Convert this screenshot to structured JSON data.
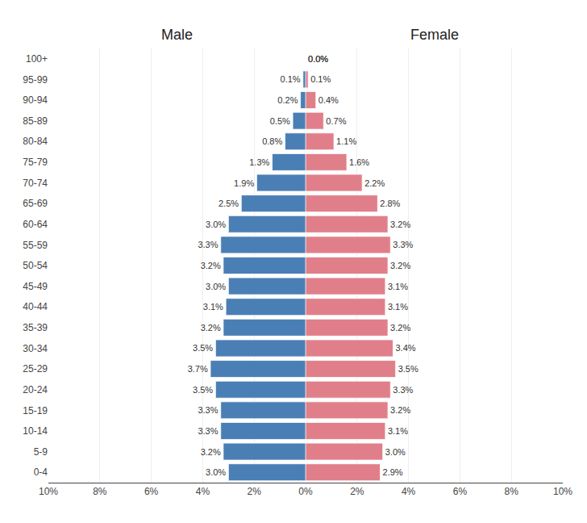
{
  "chart_data": {
    "type": "bar",
    "orientation": "horizontal",
    "categories": [
      "0-4",
      "5-9",
      "10-14",
      "15-19",
      "20-24",
      "25-29",
      "30-34",
      "35-39",
      "40-44",
      "45-49",
      "50-54",
      "55-59",
      "60-64",
      "65-69",
      "70-74",
      "75-79",
      "80-84",
      "85-89",
      "90-94",
      "95-99",
      "100+"
    ],
    "series": [
      {
        "name": "Male",
        "color": "#4a7fb5",
        "values": [
          3.0,
          3.2,
          3.3,
          3.3,
          3.5,
          3.7,
          3.5,
          3.2,
          3.1,
          3.0,
          3.2,
          3.3,
          3.0,
          2.5,
          1.9,
          1.3,
          0.8,
          0.5,
          0.2,
          0.1,
          0.0
        ],
        "value_labels": [
          "3.0%",
          "3.2%",
          "3.3%",
          "3.3%",
          "3.5%",
          "3.7%",
          "3.5%",
          "3.2%",
          "3.1%",
          "3.0%",
          "3.2%",
          "3.3%",
          "3.0%",
          "2.5%",
          "1.9%",
          "1.3%",
          "0.8%",
          "0.5%",
          "0.2%",
          "0.1%",
          "0.0%"
        ]
      },
      {
        "name": "Female",
        "color": "#e07f8a",
        "values": [
          2.9,
          3.0,
          3.1,
          3.2,
          3.3,
          3.5,
          3.4,
          3.2,
          3.1,
          3.1,
          3.2,
          3.3,
          3.2,
          2.8,
          2.2,
          1.6,
          1.1,
          0.7,
          0.4,
          0.1,
          0.0
        ],
        "value_labels": [
          "2.9%",
          "3.0%",
          "3.1%",
          "3.2%",
          "3.3%",
          "3.5%",
          "3.4%",
          "3.2%",
          "3.1%",
          "3.1%",
          "3.2%",
          "3.3%",
          "3.2%",
          "2.8%",
          "2.2%",
          "1.6%",
          "1.1%",
          "0.7%",
          "0.4%",
          "0.1%",
          "0.0%"
        ]
      }
    ],
    "xlim": [
      0,
      10
    ],
    "xticks": [
      {
        "value": 0,
        "label": "0%"
      },
      {
        "value": 2,
        "label": "2%"
      },
      {
        "value": 4,
        "label": "4%"
      },
      {
        "value": 6,
        "label": "6%"
      },
      {
        "value": 8,
        "label": "8%"
      },
      {
        "value": 10,
        "label": "10%"
      }
    ],
    "grid": true,
    "data_labels": true
  }
}
